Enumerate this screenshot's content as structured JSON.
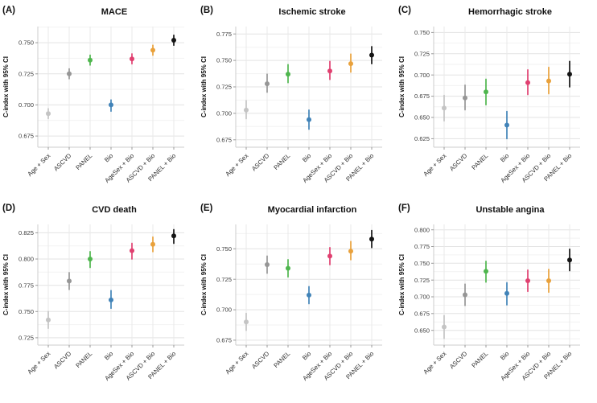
{
  "figure": {
    "ylabel": "C-index with 95% CI"
  },
  "category_colors": [
    "#c4c4c4",
    "#969696",
    "#4fb64e",
    "#4183b8",
    "#e04070",
    "#e9a13b",
    "#141414"
  ],
  "chart_data": [
    {
      "type": "scatter",
      "panel_label": "(A)",
      "title": "MACE",
      "ylabel": "C-index with 95% CI",
      "categories": [
        "Age + Sex",
        "ASCVD",
        "PANEL",
        "Bio",
        "AgeSex + Bio",
        "ASCVD + Bio",
        "PANEL + Bio"
      ],
      "values": [
        0.693,
        0.725,
        0.736,
        0.7,
        0.737,
        0.744,
        0.752
      ],
      "ci_low": [
        0.689,
        0.721,
        0.732,
        0.695,
        0.733,
        0.74,
        0.748
      ],
      "ci_high": [
        0.697,
        0.729,
        0.74,
        0.704,
        0.741,
        0.748,
        0.756
      ],
      "yticks": [
        0.675,
        0.7,
        0.725,
        0.75
      ],
      "ylim": [
        0.666,
        0.763
      ],
      "grid": true,
      "legend": false
    },
    {
      "type": "scatter",
      "panel_label": "(B)",
      "title": "Ischemic stroke",
      "ylabel": "C-index with 95% CI",
      "categories": [
        "Age + Sex",
        "ASCVD",
        "PANEL",
        "Bio",
        "AgeSex + Bio",
        "ASCVD + Bio",
        "PANEL + Bio"
      ],
      "values": [
        0.703,
        0.728,
        0.737,
        0.694,
        0.74,
        0.747,
        0.755
      ],
      "ci_low": [
        0.695,
        0.72,
        0.729,
        0.685,
        0.732,
        0.739,
        0.747
      ],
      "ci_high": [
        0.712,
        0.737,
        0.746,
        0.703,
        0.749,
        0.756,
        0.763
      ],
      "yticks": [
        0.675,
        0.7,
        0.725,
        0.75,
        0.775
      ],
      "ylim": [
        0.668,
        0.782
      ],
      "grid": true,
      "legend": false
    },
    {
      "type": "scatter",
      "panel_label": "(C)",
      "title": "Hemorrhagic stroke",
      "ylabel": "C-index with 95% CI",
      "categories": [
        "Age + Sex",
        "ASCVD",
        "PANEL",
        "Bio",
        "AgeSex + Bio",
        "ASCVD + Bio",
        "PANEL + Bio"
      ],
      "values": [
        0.661,
        0.673,
        0.68,
        0.641,
        0.691,
        0.693,
        0.701
      ],
      "ci_low": [
        0.646,
        0.659,
        0.665,
        0.625,
        0.677,
        0.678,
        0.686
      ],
      "ci_high": [
        0.676,
        0.688,
        0.695,
        0.657,
        0.706,
        0.709,
        0.716
      ],
      "yticks": [
        0.625,
        0.65,
        0.675,
        0.7,
        0.725,
        0.75
      ],
      "ylim": [
        0.615,
        0.757
      ],
      "grid": true,
      "legend": false
    },
    {
      "type": "scatter",
      "panel_label": "(D)",
      "title": "CVD death",
      "ylabel": "C-index with 95% CI",
      "categories": [
        "Age + Sex",
        "ASCVD",
        "PANEL",
        "Bio",
        "AgeSex + Bio",
        "ASCVD + Bio",
        "PANEL + Bio"
      ],
      "values": [
        0.742,
        0.779,
        0.8,
        0.761,
        0.808,
        0.814,
        0.822
      ],
      "ci_low": [
        0.734,
        0.771,
        0.792,
        0.753,
        0.8,
        0.807,
        0.815
      ],
      "ci_high": [
        0.75,
        0.787,
        0.807,
        0.77,
        0.815,
        0.821,
        0.828
      ],
      "yticks": [
        0.725,
        0.75,
        0.775,
        0.8,
        0.825
      ],
      "ylim": [
        0.718,
        0.833
      ],
      "grid": true,
      "legend": false
    },
    {
      "type": "scatter",
      "panel_label": "(E)",
      "title": "Myocardial infarction",
      "ylabel": "C-index with 95% CI",
      "categories": [
        "Age + Sex",
        "ASCVD",
        "PANEL",
        "Bio",
        "AgeSex + Bio",
        "ASCVD + Bio",
        "PANEL + Bio"
      ],
      "values": [
        0.69,
        0.737,
        0.734,
        0.712,
        0.744,
        0.748,
        0.758
      ],
      "ci_low": [
        0.683,
        0.73,
        0.727,
        0.705,
        0.737,
        0.741,
        0.751
      ],
      "ci_high": [
        0.697,
        0.744,
        0.741,
        0.719,
        0.751,
        0.756,
        0.765
      ],
      "yticks": [
        0.675,
        0.7,
        0.725,
        0.75
      ],
      "ylim": [
        0.671,
        0.77
      ],
      "grid": true,
      "legend": false
    },
    {
      "type": "scatter",
      "panel_label": "(F)",
      "title": "Unstable angina",
      "ylabel": "C-index with 95% CI",
      "categories": [
        "Age + Sex",
        "ASCVD",
        "PANEL",
        "Bio",
        "AgeSex + Bio",
        "ASCVD + Bio",
        "PANEL + Bio"
      ],
      "values": [
        0.655,
        0.703,
        0.738,
        0.705,
        0.724,
        0.724,
        0.755
      ],
      "ci_low": [
        0.638,
        0.687,
        0.722,
        0.688,
        0.708,
        0.707,
        0.739
      ],
      "ci_high": [
        0.672,
        0.719,
        0.753,
        0.721,
        0.74,
        0.741,
        0.771
      ],
      "yticks": [
        0.65,
        0.675,
        0.7,
        0.725,
        0.75,
        0.775,
        0.8
      ],
      "ylim": [
        0.628,
        0.808
      ],
      "grid": true,
      "legend": false
    }
  ]
}
